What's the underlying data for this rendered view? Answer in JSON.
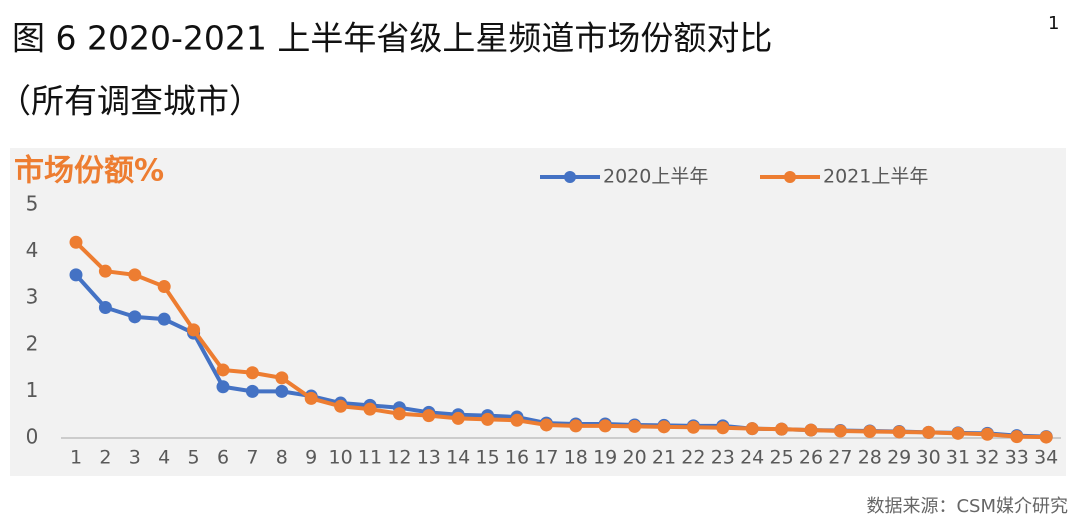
{
  "chart_data": {
    "type": "line",
    "title": "图 6 2020-2021 上半年省级上星频道市场份额对比",
    "title_note": "1",
    "subtitle": "（所有调查城市）",
    "y_label": "市场份额%",
    "source": "数据来源：CSM媒介研究",
    "categories": [
      "1",
      "2",
      "3",
      "4",
      "5",
      "6",
      "7",
      "8",
      "9",
      "10",
      "11",
      "12",
      "13",
      "14",
      "15",
      "16",
      "17",
      "18",
      "19",
      "20",
      "21",
      "22",
      "23",
      "24",
      "25",
      "26",
      "27",
      "28",
      "29",
      "30",
      "31",
      "32",
      "33",
      "34"
    ],
    "series": [
      {
        "name": "2020上半年",
        "color": "#4472c4",
        "values": [
          3.5,
          2.8,
          2.6,
          2.55,
          2.25,
          1.1,
          1.0,
          1.0,
          0.9,
          0.75,
          0.7,
          0.65,
          0.55,
          0.5,
          0.48,
          0.45,
          0.32,
          0.3,
          0.3,
          0.28,
          0.27,
          0.26,
          0.26,
          0.2,
          0.19,
          0.17,
          0.16,
          0.15,
          0.14,
          0.12,
          0.11,
          0.1,
          0.05,
          0.03
        ]
      },
      {
        "name": "2021上半年",
        "color": "#ed7d31",
        "values": [
          4.2,
          3.58,
          3.5,
          3.25,
          2.32,
          1.46,
          1.4,
          1.29,
          0.85,
          0.68,
          0.62,
          0.52,
          0.48,
          0.42,
          0.4,
          0.38,
          0.28,
          0.26,
          0.26,
          0.25,
          0.24,
          0.23,
          0.22,
          0.2,
          0.19,
          0.17,
          0.15,
          0.14,
          0.13,
          0.12,
          0.1,
          0.08,
          0.03,
          0.02
        ]
      }
    ],
    "ylim": [
      0,
      5
    ],
    "yticks": [
      0,
      1,
      2,
      3,
      4,
      5
    ],
    "grid": false,
    "legend": "top"
  }
}
